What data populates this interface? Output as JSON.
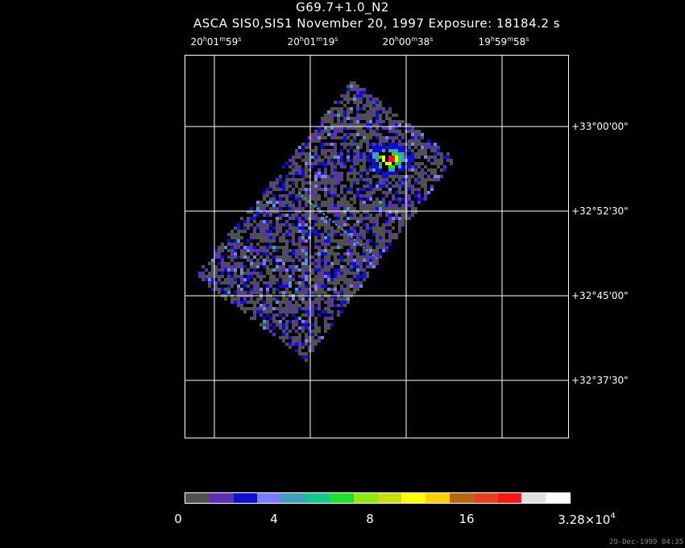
{
  "title": {
    "line1": "G69.7+1.0_N2",
    "line2": "ASCA SIS0,SIS1 November 20, 1997 Exposure: 18184.2 s"
  },
  "ra_labels": [
    {
      "h": "20",
      "m": "01",
      "s": "59"
    },
    {
      "h": "20",
      "m": "01",
      "s": "19"
    },
    {
      "h": "20",
      "m": "00",
      "s": "38"
    },
    {
      "h": "19",
      "m": "59",
      "s": "58"
    }
  ],
  "dec_labels": [
    "+33°00'00\"",
    "+32°52'30\"",
    "+32°45'00\"",
    "+32°37'30\""
  ],
  "colorbar": {
    "labels": [
      "0",
      "4",
      "8",
      "16"
    ],
    "max_label_mantissa": "3.28×10",
    "max_label_exp": "4",
    "colors": [
      "#505050",
      "#5a2fb6",
      "#0f0fd2",
      "#7b7bff",
      "#3f9fbf",
      "#0fc78f",
      "#1fe02f",
      "#8fe80f",
      "#c7df0f",
      "#ffff00",
      "#ffcf00",
      "#b8680f",
      "#e83f1f",
      "#ff1414",
      "#e0e0e0",
      "#ffffff"
    ]
  },
  "footer": "29-Dec-1999 04:35"
}
